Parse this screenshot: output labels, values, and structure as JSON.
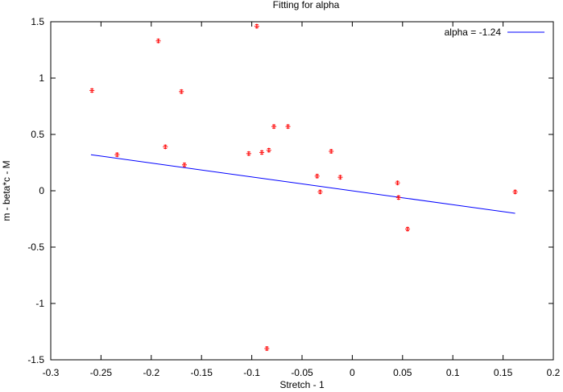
{
  "chart_data": {
    "type": "scatter",
    "title": "Fitting for alpha",
    "xlabel": "Stretch - 1",
    "ylabel": "m - beta*c  - M",
    "xlim": [
      -0.3,
      0.2
    ],
    "ylim": [
      -1.5,
      1.5
    ],
    "xticks": [
      -0.3,
      -0.25,
      -0.2,
      -0.15,
      -0.1,
      -0.05,
      0,
      0.05,
      0.1,
      0.15,
      0.2
    ],
    "xtick_labels": [
      "-0.3",
      "-0.25",
      "-0.2",
      "-0.15",
      "-0.1",
      "-0.05",
      "0",
      "0.05",
      "0.1",
      "0.15",
      "0.2"
    ],
    "yticks": [
      -1.5,
      -1,
      -0.5,
      0,
      0.5,
      1,
      1.5
    ],
    "ytick_labels": [
      "-1.5",
      "-1",
      "-0.5",
      "0",
      "0.5",
      "1",
      "1.5"
    ],
    "grid": false,
    "legend_position": "top-right",
    "points": [
      {
        "x": -0.259,
        "y": 0.89
      },
      {
        "x": -0.234,
        "y": 0.32
      },
      {
        "x": -0.193,
        "y": 1.33
      },
      {
        "x": -0.186,
        "y": 0.39
      },
      {
        "x": -0.17,
        "y": 0.88
      },
      {
        "x": -0.167,
        "y": 0.23
      },
      {
        "x": -0.103,
        "y": 0.33
      },
      {
        "x": -0.095,
        "y": 1.46
      },
      {
        "x": -0.09,
        "y": 0.34
      },
      {
        "x": -0.085,
        "y": -1.4
      },
      {
        "x": -0.083,
        "y": 0.36
      },
      {
        "x": -0.078,
        "y": 0.57
      },
      {
        "x": -0.064,
        "y": 0.57
      },
      {
        "x": -0.035,
        "y": 0.13
      },
      {
        "x": -0.032,
        "y": -0.01
      },
      {
        "x": -0.021,
        "y": 0.35
      },
      {
        "x": -0.012,
        "y": 0.12
      },
      {
        "x": 0.045,
        "y": 0.07
      },
      {
        "x": 0.046,
        "y": -0.06
      },
      {
        "x": 0.055,
        "y": -0.34
      },
      {
        "x": 0.162,
        "y": -0.01
      }
    ],
    "fit_line": {
      "name": "alpha = -1.24",
      "x": [
        -0.26,
        0.162
      ],
      "y": [
        0.32,
        -0.2
      ]
    },
    "colors": {
      "points": "#ff0000",
      "fit_line": "#0000ff",
      "axes": "#000000"
    }
  }
}
